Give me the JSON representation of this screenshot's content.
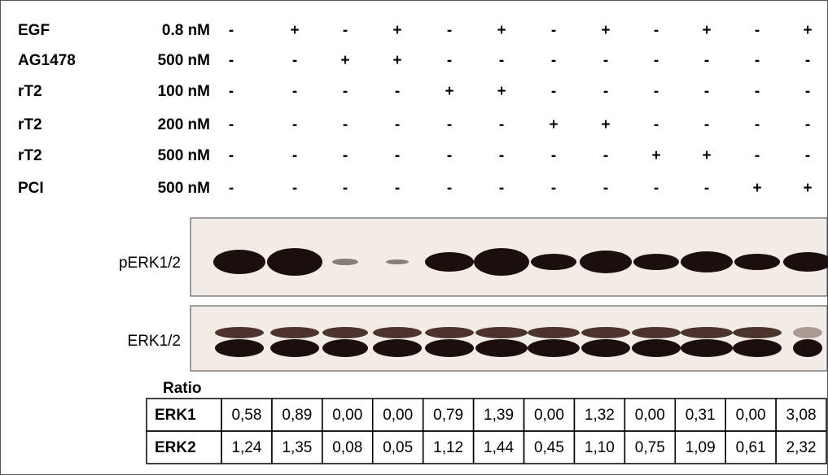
{
  "treatments": [
    {
      "label": "EGF",
      "conc": "0.8 nM",
      "signs": [
        "-",
        "+",
        "-",
        "+",
        "-",
        "+",
        "-",
        "+",
        "-",
        "+",
        "-",
        "+"
      ]
    },
    {
      "label": "AG1478",
      "conc": "500 nM",
      "signs": [
        "-",
        "-",
        "+",
        "+",
        "-",
        "-",
        "-",
        "-",
        "-",
        "-",
        "-",
        "-"
      ]
    },
    {
      "label": "rT2",
      "conc": "100 nM",
      "signs": [
        "-",
        "-",
        "-",
        "-",
        "+",
        "+",
        "-",
        "-",
        "-",
        "-",
        "-",
        "-"
      ]
    },
    {
      "label": "rT2",
      "conc": "200 nM",
      "signs": [
        "-",
        "-",
        "-",
        "-",
        "-",
        "-",
        "+",
        "+",
        "-",
        "-",
        "-",
        "-"
      ]
    },
    {
      "label": "rT2",
      "conc": "500 nM",
      "signs": [
        "-",
        "-",
        "-",
        "-",
        "-",
        "-",
        "-",
        "-",
        "+",
        "+",
        "-",
        "-"
      ]
    },
    {
      "label": "PCI",
      "conc": "500 nM",
      "signs": [
        "-",
        "-",
        "-",
        "-",
        "-",
        "-",
        "-",
        "-",
        "-",
        "-",
        "+",
        "+"
      ]
    }
  ],
  "blots": [
    "pERK1/2",
    "ERK1/2"
  ],
  "ratio": {
    "title": "Ratio",
    "rows": [
      {
        "label": "ERK1",
        "values": [
          "0,58",
          "0,89",
          "0,00",
          "0,00",
          "0,79",
          "1,39",
          "0,00",
          "1,32",
          "0,00",
          "0,31",
          "0,00",
          "3,08"
        ]
      },
      {
        "label": "ERK2",
        "values": [
          "1,24",
          "1,35",
          "0,08",
          "0,05",
          "1,12",
          "1,44",
          "0,45",
          "1,10",
          "0,75",
          "1,09",
          "0,61",
          "2,32"
        ]
      }
    ]
  }
}
